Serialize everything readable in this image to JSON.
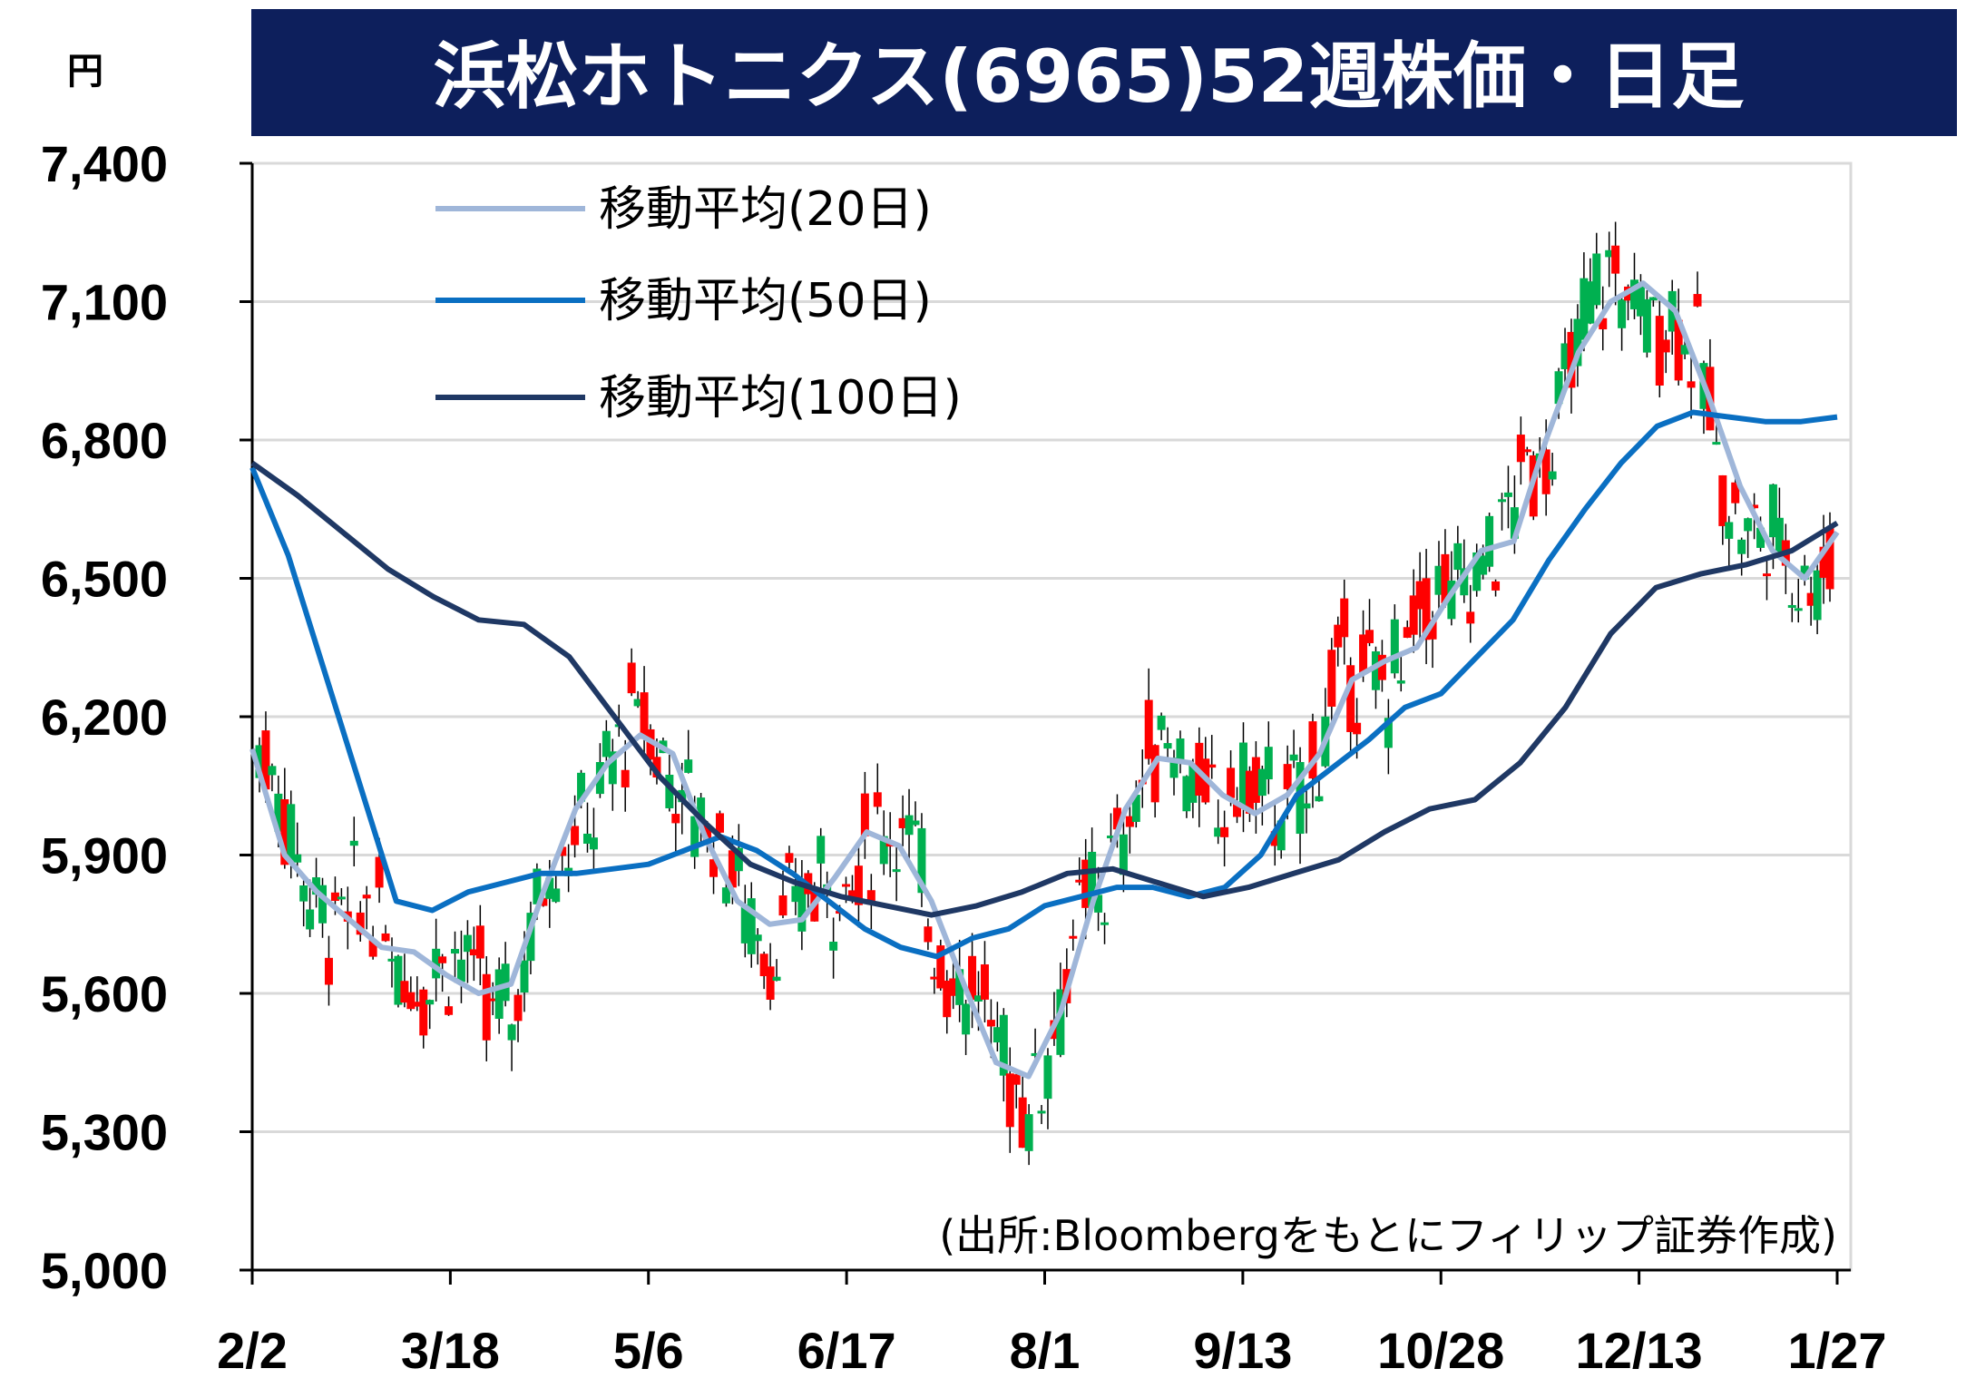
{
  "chart_data": {
    "type": "candlestick",
    "title": "浜松ホトニクス(6965)52週株価・日足",
    "unit": "円",
    "source": "(出所:Bloombergをもとにフィリップ証券作成)",
    "y_ticks": [
      "5,000",
      "5,300",
      "5,600",
      "5,900",
      "6,200",
      "6,500",
      "6,800",
      "7,100",
      "7,400"
    ],
    "y_values": [
      5000,
      5300,
      5600,
      5900,
      6200,
      6500,
      6800,
      7100,
      7400
    ],
    "ylim": [
      5000,
      7400
    ],
    "x_ticks": [
      "2/2",
      "3/18",
      "5/6",
      "6/17",
      "8/1",
      "9/13",
      "10/28",
      "12/13",
      "1/27"
    ],
    "grid": "horizontal",
    "legend_position": "top-left",
    "colors": {
      "up": "#ff0000",
      "down": "#00b050",
      "ma20": "#9fb6d9",
      "ma50": "#0a6fc2",
      "ma100": "#1f3864",
      "title_bg": "#0d1f5c"
    },
    "series": [
      {
        "name": "移動平均(20日)",
        "color": "#9fb6d9",
        "values": [
          6130,
          5900,
          5820,
          5760,
          5700,
          5690,
          5640,
          5600,
          5620,
          5820,
          6000,
          6100,
          6160,
          6120,
          5940,
          5800,
          5750,
          5760,
          5850,
          5950,
          5920,
          5800,
          5620,
          5450,
          5420,
          5560,
          5800,
          6000,
          6110,
          6100,
          6030,
          5990,
          6030,
          6120,
          6280,
          6320,
          6350,
          6460,
          6560,
          6580,
          6800,
          6990,
          7100,
          7140,
          7080,
          6900,
          6700,
          6560,
          6500,
          6600
        ]
      },
      {
        "name": "移動平均(50日)",
        "color": "#0a6fc2",
        "values": [
          6740,
          6550,
          6300,
          6050,
          5800,
          5780,
          5820,
          5840,
          5860,
          5860,
          5870,
          5880,
          5910,
          5940,
          5910,
          5860,
          5800,
          5740,
          5700,
          5680,
          5720,
          5740,
          5790,
          5810,
          5830,
          5830,
          5810,
          5830,
          5900,
          6030,
          6090,
          6150,
          6220,
          6250,
          6330,
          6410,
          6540,
          6650,
          6750,
          6830,
          6860,
          6850,
          6840,
          6840,
          6850
        ]
      },
      {
        "name": "移動平均(100日)",
        "color": "#1f3864",
        "values": [
          6750,
          6680,
          6600,
          6520,
          6460,
          6410,
          6400,
          6330,
          6200,
          6070,
          5970,
          5880,
          5840,
          5810,
          5790,
          5770,
          5790,
          5820,
          5860,
          5870,
          5840,
          5810,
          5830,
          5860,
          5890,
          5950,
          6000,
          6020,
          6100,
          6220,
          6380,
          6480,
          6510,
          6530,
          6560,
          6620
        ]
      }
    ]
  }
}
